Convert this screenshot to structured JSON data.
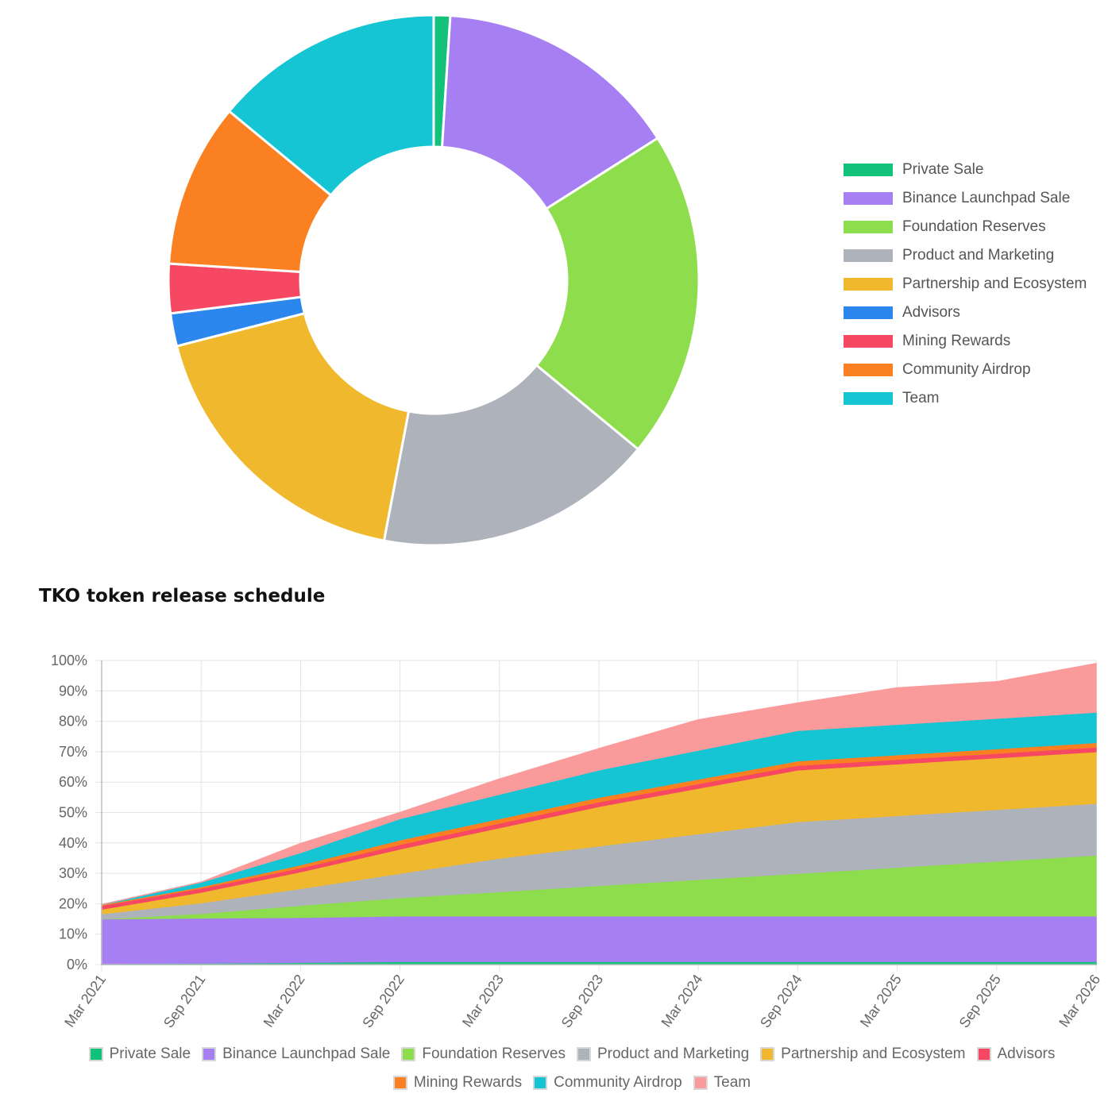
{
  "colors": {
    "Private Sale": "#12c27a",
    "Binance Launchpad Sale": "#a67ff2",
    "Foundation Reserves": "#8ddd4c",
    "Product and Marketing": "#adb2bb",
    "Partnership and Ecosystem": "#f0b92d",
    "Advisors": "#2b86ee",
    "Mining Rewards": "#f64862",
    "Community Airdrop": "#fb8022",
    "Team": "#15c5d4"
  },
  "area_colors": {
    "Private Sale": "#12c27a",
    "Binance Launchpad Sale": "#a67ff2",
    "Foundation Reserves": "#8ddd4c",
    "Product and Marketing": "#adb2bb",
    "Partnership and Ecosystem": "#f0b92d",
    "Advisors": "#f64862",
    "Mining Rewards": "#fb8022",
    "Community Airdrop": "#15c5d4",
    "Team": "#fb9a9a"
  },
  "chart_title": "TKO token release schedule",
  "chart_data": [
    {
      "type": "pie",
      "donut": true,
      "labels": [
        "Private Sale",
        "Binance Launchpad Sale",
        "Foundation Reserves",
        "Product and Marketing",
        "Partnership and Ecosystem",
        "Advisors",
        "Mining Rewards",
        "Community Airdrop",
        "Team"
      ],
      "values": [
        1,
        15,
        20,
        17,
        18,
        2,
        3,
        10,
        14
      ],
      "legend": "right"
    },
    {
      "type": "area",
      "stacked": true,
      "title": "TKO token release schedule",
      "x": [
        "Mar 2021",
        "Sep 2021",
        "Mar 2022",
        "Sep 2022",
        "Mar 2023",
        "Sep 2023",
        "Mar 2024",
        "Sep 2024",
        "Mar 2025",
        "Sep 2025",
        "Mar 2026"
      ],
      "x_ticks": [
        "Mar 2021",
        "Sep 2021",
        "Mar 2022",
        "Sep 2022",
        "Mar 2023",
        "Sep 2023",
        "Mar 2024",
        "Sep 2024",
        "Mar 2025",
        "Sep 2025",
        "Mar 2026"
      ],
      "ylim": [
        0,
        100
      ],
      "y_ticks": [
        "0%",
        "10%",
        "20%",
        "30%",
        "40%",
        "50%",
        "60%",
        "70%",
        "80%",
        "90%",
        "100%"
      ],
      "grid": true,
      "legend": "bottom",
      "series": [
        {
          "name": "Private Sale",
          "values": [
            0.3,
            0.5,
            0.7,
            1,
            1,
            1,
            1,
            1,
            1,
            1,
            1
          ]
        },
        {
          "name": "Binance Launchpad Sale",
          "values": [
            14.7,
            14.8,
            14.8,
            15,
            15,
            15,
            15,
            15,
            15,
            15,
            15
          ]
        },
        {
          "name": "Foundation Reserves",
          "values": [
            0,
            1.5,
            4,
            6,
            8,
            10,
            12,
            14,
            16,
            18,
            20
          ]
        },
        {
          "name": "Product and Marketing",
          "values": [
            1.7,
            3.5,
            5.5,
            8,
            11,
            13,
            15,
            17,
            17,
            17,
            17
          ]
        },
        {
          "name": "Partnership and Ecosystem",
          "values": [
            1.5,
            3.5,
            5.5,
            8,
            10,
            13,
            15,
            17,
            17,
            17,
            17
          ]
        },
        {
          "name": "Advisors",
          "values": [
            1.2,
            1.3,
            1.3,
            1.5,
            1.5,
            1.5,
            1.5,
            1.5,
            1.5,
            1.5,
            1.5
          ]
        },
        {
          "name": "Mining Rewards",
          "values": [
            0.3,
            0.5,
            1,
            1.5,
            1.5,
            1.5,
            1.5,
            1.5,
            1.5,
            1.5,
            1.5
          ]
        },
        {
          "name": "Community Airdrop",
          "values": [
            0,
            1.5,
            4,
            7,
            8,
            9,
            9.5,
            10,
            10,
            10,
            10
          ]
        },
        {
          "name": "Team",
          "values": [
            0,
            0,
            3,
            2,
            5,
            7,
            10,
            9,
            12,
            12,
            16
          ]
        }
      ]
    }
  ]
}
